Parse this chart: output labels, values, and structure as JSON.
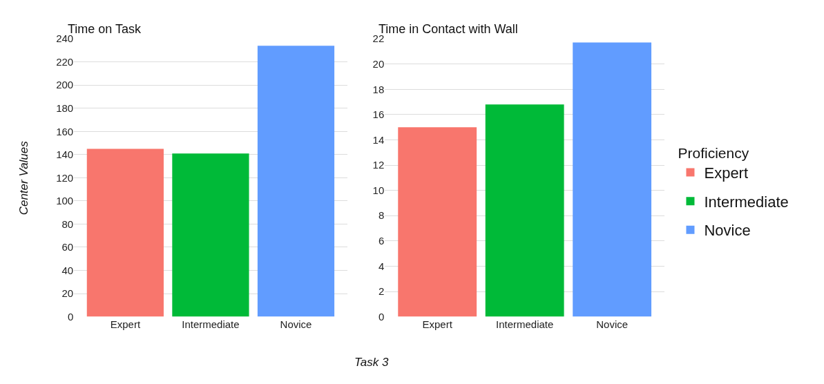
{
  "chart_data": [
    {
      "type": "bar",
      "title": "Time on Task",
      "xlabel": "Task 3",
      "ylabel": "Center Values",
      "categories": [
        "Expert",
        "Intermediate",
        "Novice"
      ],
      "series": [
        {
          "name": "Expert",
          "color": "#f8766d",
          "values": [
            145,
            null,
            null
          ]
        },
        {
          "name": "Intermediate",
          "color": "#00ba38",
          "values": [
            null,
            141,
            null
          ]
        },
        {
          "name": "Novice",
          "color": "#619cff",
          "values": [
            null,
            null,
            234
          ]
        }
      ],
      "ylim": [
        0,
        240
      ],
      "yticks": [
        0,
        20,
        40,
        60,
        80,
        100,
        120,
        140,
        160,
        180,
        200,
        220,
        240
      ],
      "grid": "y",
      "legend": "right",
      "legend_title": "Proficiency"
    },
    {
      "type": "bar",
      "title": "Time in Contact with Wall",
      "categories": [
        "Expert",
        "Intermediate",
        "Novice"
      ],
      "series": [
        {
          "color": "#f8766d",
          "values": [
            15.0,
            null,
            null
          ]
        },
        {
          "color": "#00ba38",
          "values": [
            null,
            16.8,
            null
          ]
        },
        {
          "color": "#619cff",
          "values": [
            null,
            null,
            21.7
          ]
        }
      ],
      "ylim": [
        0,
        22
      ],
      "yticks": [
        0,
        2,
        4,
        6,
        8,
        10,
        12,
        14,
        16,
        18,
        20,
        22
      ],
      "grid": "y"
    }
  ]
}
